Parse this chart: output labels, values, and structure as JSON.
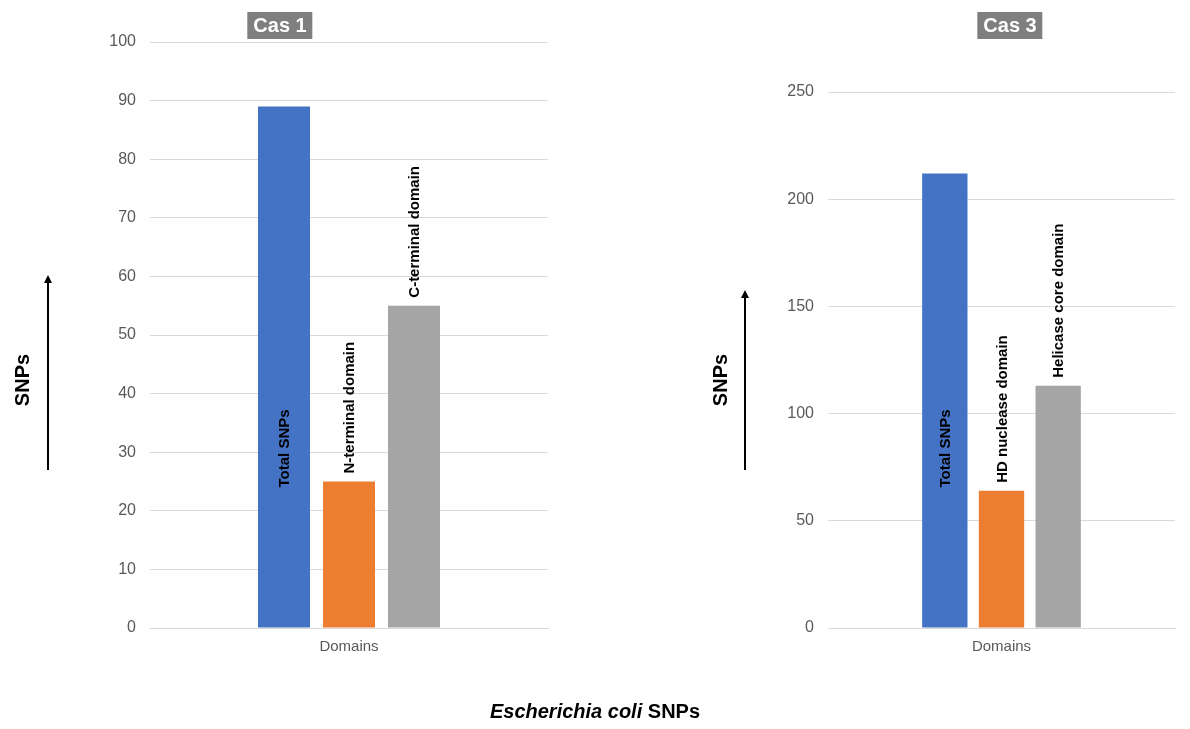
{
  "chart_data": [
    {
      "type": "bar",
      "title": "Cas 1",
      "ylabel": "SNPs",
      "categories": [
        "Domains"
      ],
      "series": [
        {
          "name": "Total SNPs",
          "color": "#4472c4",
          "values": [
            89
          ]
        },
        {
          "name": "N-terminal domain",
          "color": "#ed7d31",
          "values": [
            25
          ]
        },
        {
          "name": "C-terminal domain",
          "color": "#a5a5a5",
          "values": [
            55
          ]
        }
      ],
      "ylim": [
        0,
        100
      ],
      "yticks": [
        0,
        10,
        20,
        30,
        40,
        50,
        60,
        70,
        80,
        90,
        100
      ],
      "grid": "y",
      "legend": false,
      "annotations": [
        "Escherichia coli SNPs"
      ]
    },
    {
      "type": "bar",
      "title": "Cas 3",
      "ylabel": "SNPs",
      "categories": [
        "Domains"
      ],
      "series": [
        {
          "name": "Total SNPs",
          "color": "#4472c4",
          "values": [
            212
          ]
        },
        {
          "name": "HD nuclease domain",
          "color": "#ed7d31",
          "values": [
            64
          ]
        },
        {
          "name": "Helicase core domain",
          "color": "#a5a5a5",
          "values": [
            113
          ]
        }
      ],
      "ylim": [
        0,
        250
      ],
      "yticks": [
        0,
        50,
        100,
        150,
        200,
        250
      ],
      "grid": "y",
      "legend": false
    }
  ]
}
